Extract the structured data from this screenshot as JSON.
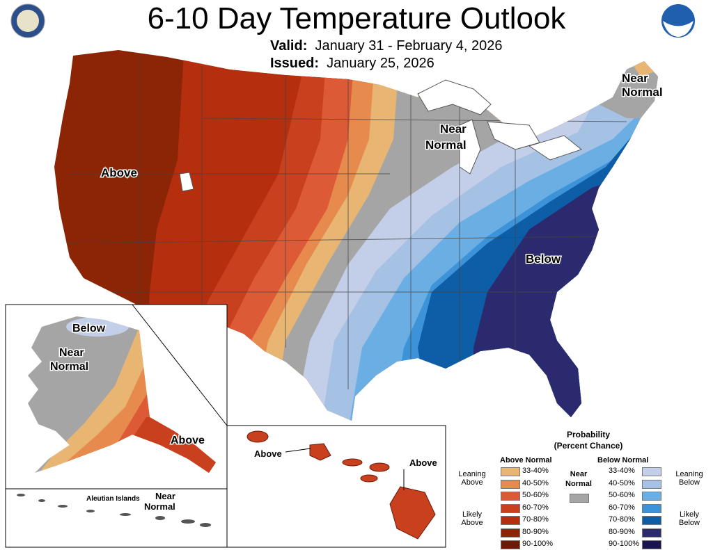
{
  "title": "6-10 Day Temperature Outlook",
  "valid_label": "Valid:",
  "valid_value": "January 31 - February 4, 2026",
  "issued_label": "Issued:",
  "issued_value": "January 25, 2026",
  "map_labels": {
    "above": "Above",
    "below": "Below",
    "near": "Near",
    "normal": "Normal",
    "aleutian": "Aleutian Islands"
  },
  "legend": {
    "title_line1": "Probability",
    "title_line2": "(Percent Chance)",
    "above_header": "Above Normal",
    "below_header": "Below Normal",
    "near_line1": "Near",
    "near_line2": "Normal",
    "leaning_above": [
      "Leaning",
      "Above"
    ],
    "likely_above": [
      "Likely",
      "Above"
    ],
    "leaning_below": [
      "Leaning",
      "Below"
    ],
    "likely_below": [
      "Likely",
      "Below"
    ],
    "ranges": [
      "33-40%",
      "40-50%",
      "50-60%",
      "60-70%",
      "70-80%",
      "80-90%",
      "90-100%"
    ],
    "above_colors": [
      "#e8b672",
      "#e68a4d",
      "#dd5a36",
      "#c8401e",
      "#b52f0e",
      "#8b2505",
      "#6b1a08"
    ],
    "below_colors": [
      "#c3cfe8",
      "#a5c2e4",
      "#6aaee3",
      "#3d93d8",
      "#0d5ea6",
      "#2c2a6e",
      "#1a1550"
    ],
    "near_color": "#a5a5a5"
  }
}
